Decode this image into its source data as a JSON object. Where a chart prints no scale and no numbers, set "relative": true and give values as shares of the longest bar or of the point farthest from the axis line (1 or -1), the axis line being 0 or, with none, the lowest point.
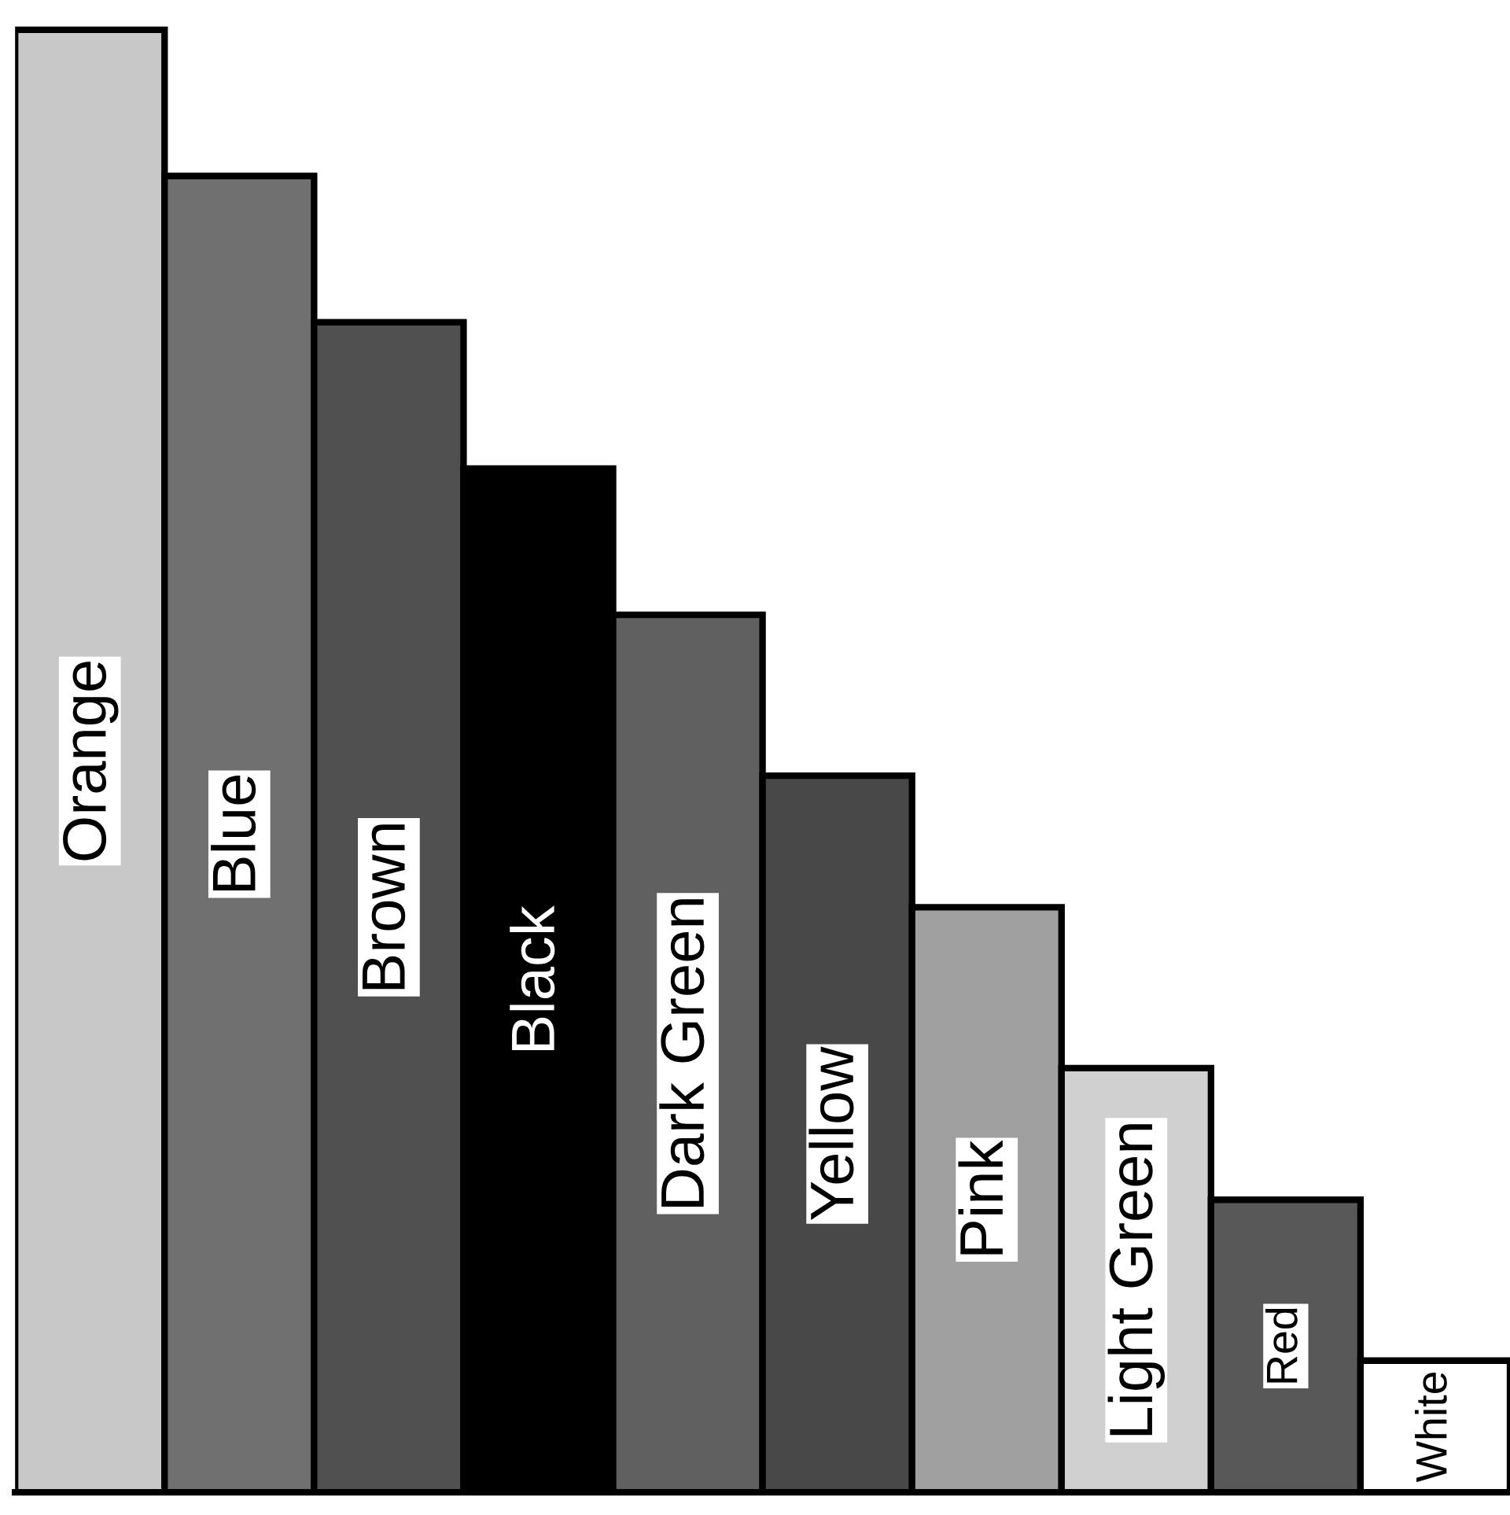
{
  "chart_data": {
    "type": "bar",
    "relative": true,
    "categories": [
      "Orange",
      "Blue",
      "Brown",
      "Black",
      "Dark Green",
      "Yellow",
      "Pink",
      "Light Green",
      "Red",
      "White"
    ],
    "values": [
      1,
      0.9,
      0.8,
      0.7,
      0.6,
      0.49,
      0.4,
      0.29,
      0.2,
      0.09
    ],
    "colors": [
      "#c8c8c8",
      "#707070",
      "#505050",
      "#000000",
      "#606060",
      "#484848",
      "#a0a0a0",
      "#d0d0d0",
      "#585858",
      "#ffffff"
    ],
    "legend": false
  }
}
